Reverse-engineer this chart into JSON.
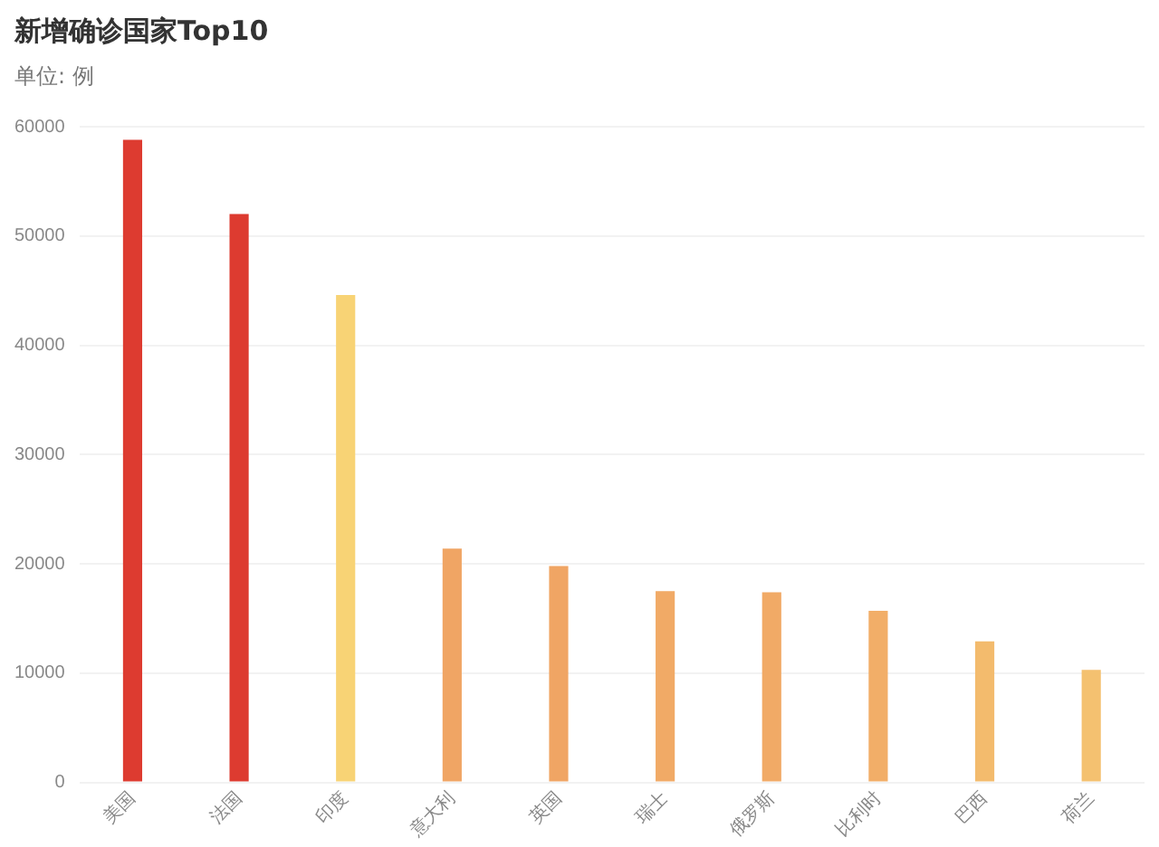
{
  "chart_data": {
    "type": "bar",
    "title": "新增确诊国家Top10",
    "subtitle": "单位: 例",
    "categories": [
      "美国",
      "法国",
      "印度",
      "意大利",
      "英国",
      "瑞士",
      "俄罗斯",
      "比利时",
      "巴西",
      "荷兰"
    ],
    "values": [
      58800,
      52000,
      44600,
      21400,
      19800,
      17500,
      17400,
      15700,
      12900,
      10300
    ],
    "colors": [
      "#dd3b30",
      "#dd3b30",
      "#f8d375",
      "#f0a564",
      "#f0a564",
      "#f1aa66",
      "#f1aa66",
      "#f2ae68",
      "#f3bb6d",
      "#f4c170"
    ],
    "ylim": [
      0,
      60000
    ],
    "yticks": [
      0,
      10000,
      20000,
      30000,
      40000,
      50000,
      60000
    ],
    "grid": "y",
    "legend": false
  }
}
